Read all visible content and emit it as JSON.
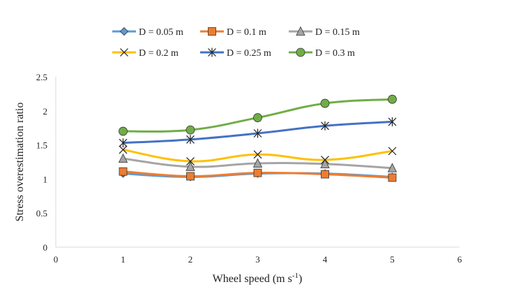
{
  "chart_data": {
    "type": "line",
    "title": "",
    "xlabel": "Wheel speed (m s",
    "xlabel_sup": "-1",
    "xlabel_close": ")",
    "ylabel": "Stress overestimation ratio",
    "xlim": [
      0,
      6
    ],
    "ylim": [
      0,
      2.5
    ],
    "x_ticks": [
      "0",
      "1",
      "2",
      "3",
      "4",
      "5",
      "6"
    ],
    "y_ticks": [
      "0",
      "0.5",
      "1",
      "1.5",
      "2",
      "2.5"
    ],
    "grid": false,
    "legend_position": "top",
    "x": [
      1,
      2,
      3,
      4,
      5
    ],
    "series": [
      {
        "name": "D = 0.05 m",
        "color": "#5b9bd5",
        "marker": "diamond",
        "values": [
          1.08,
          1.03,
          1.08,
          1.08,
          1.03
        ]
      },
      {
        "name": "D = 0.1 m",
        "color": "#ed7d31",
        "marker": "square",
        "values": [
          1.11,
          1.04,
          1.09,
          1.07,
          1.02
        ]
      },
      {
        "name": "D = 0.15 m",
        "color": "#a5a5a5",
        "marker": "triangle",
        "values": [
          1.3,
          1.18,
          1.23,
          1.22,
          1.16
        ]
      },
      {
        "name": "D = 0.2 m",
        "color": "#ffc000",
        "marker": "x",
        "values": [
          1.43,
          1.26,
          1.36,
          1.28,
          1.41
        ]
      },
      {
        "name": "D = 0.25 m",
        "color": "#4472c4",
        "marker": "asterisk",
        "values": [
          1.53,
          1.58,
          1.67,
          1.78,
          1.84
        ]
      },
      {
        "name": "D = 0.3 m",
        "color": "#70ad47",
        "marker": "circle",
        "values": [
          1.7,
          1.72,
          1.9,
          2.11,
          2.17
        ]
      }
    ]
  }
}
